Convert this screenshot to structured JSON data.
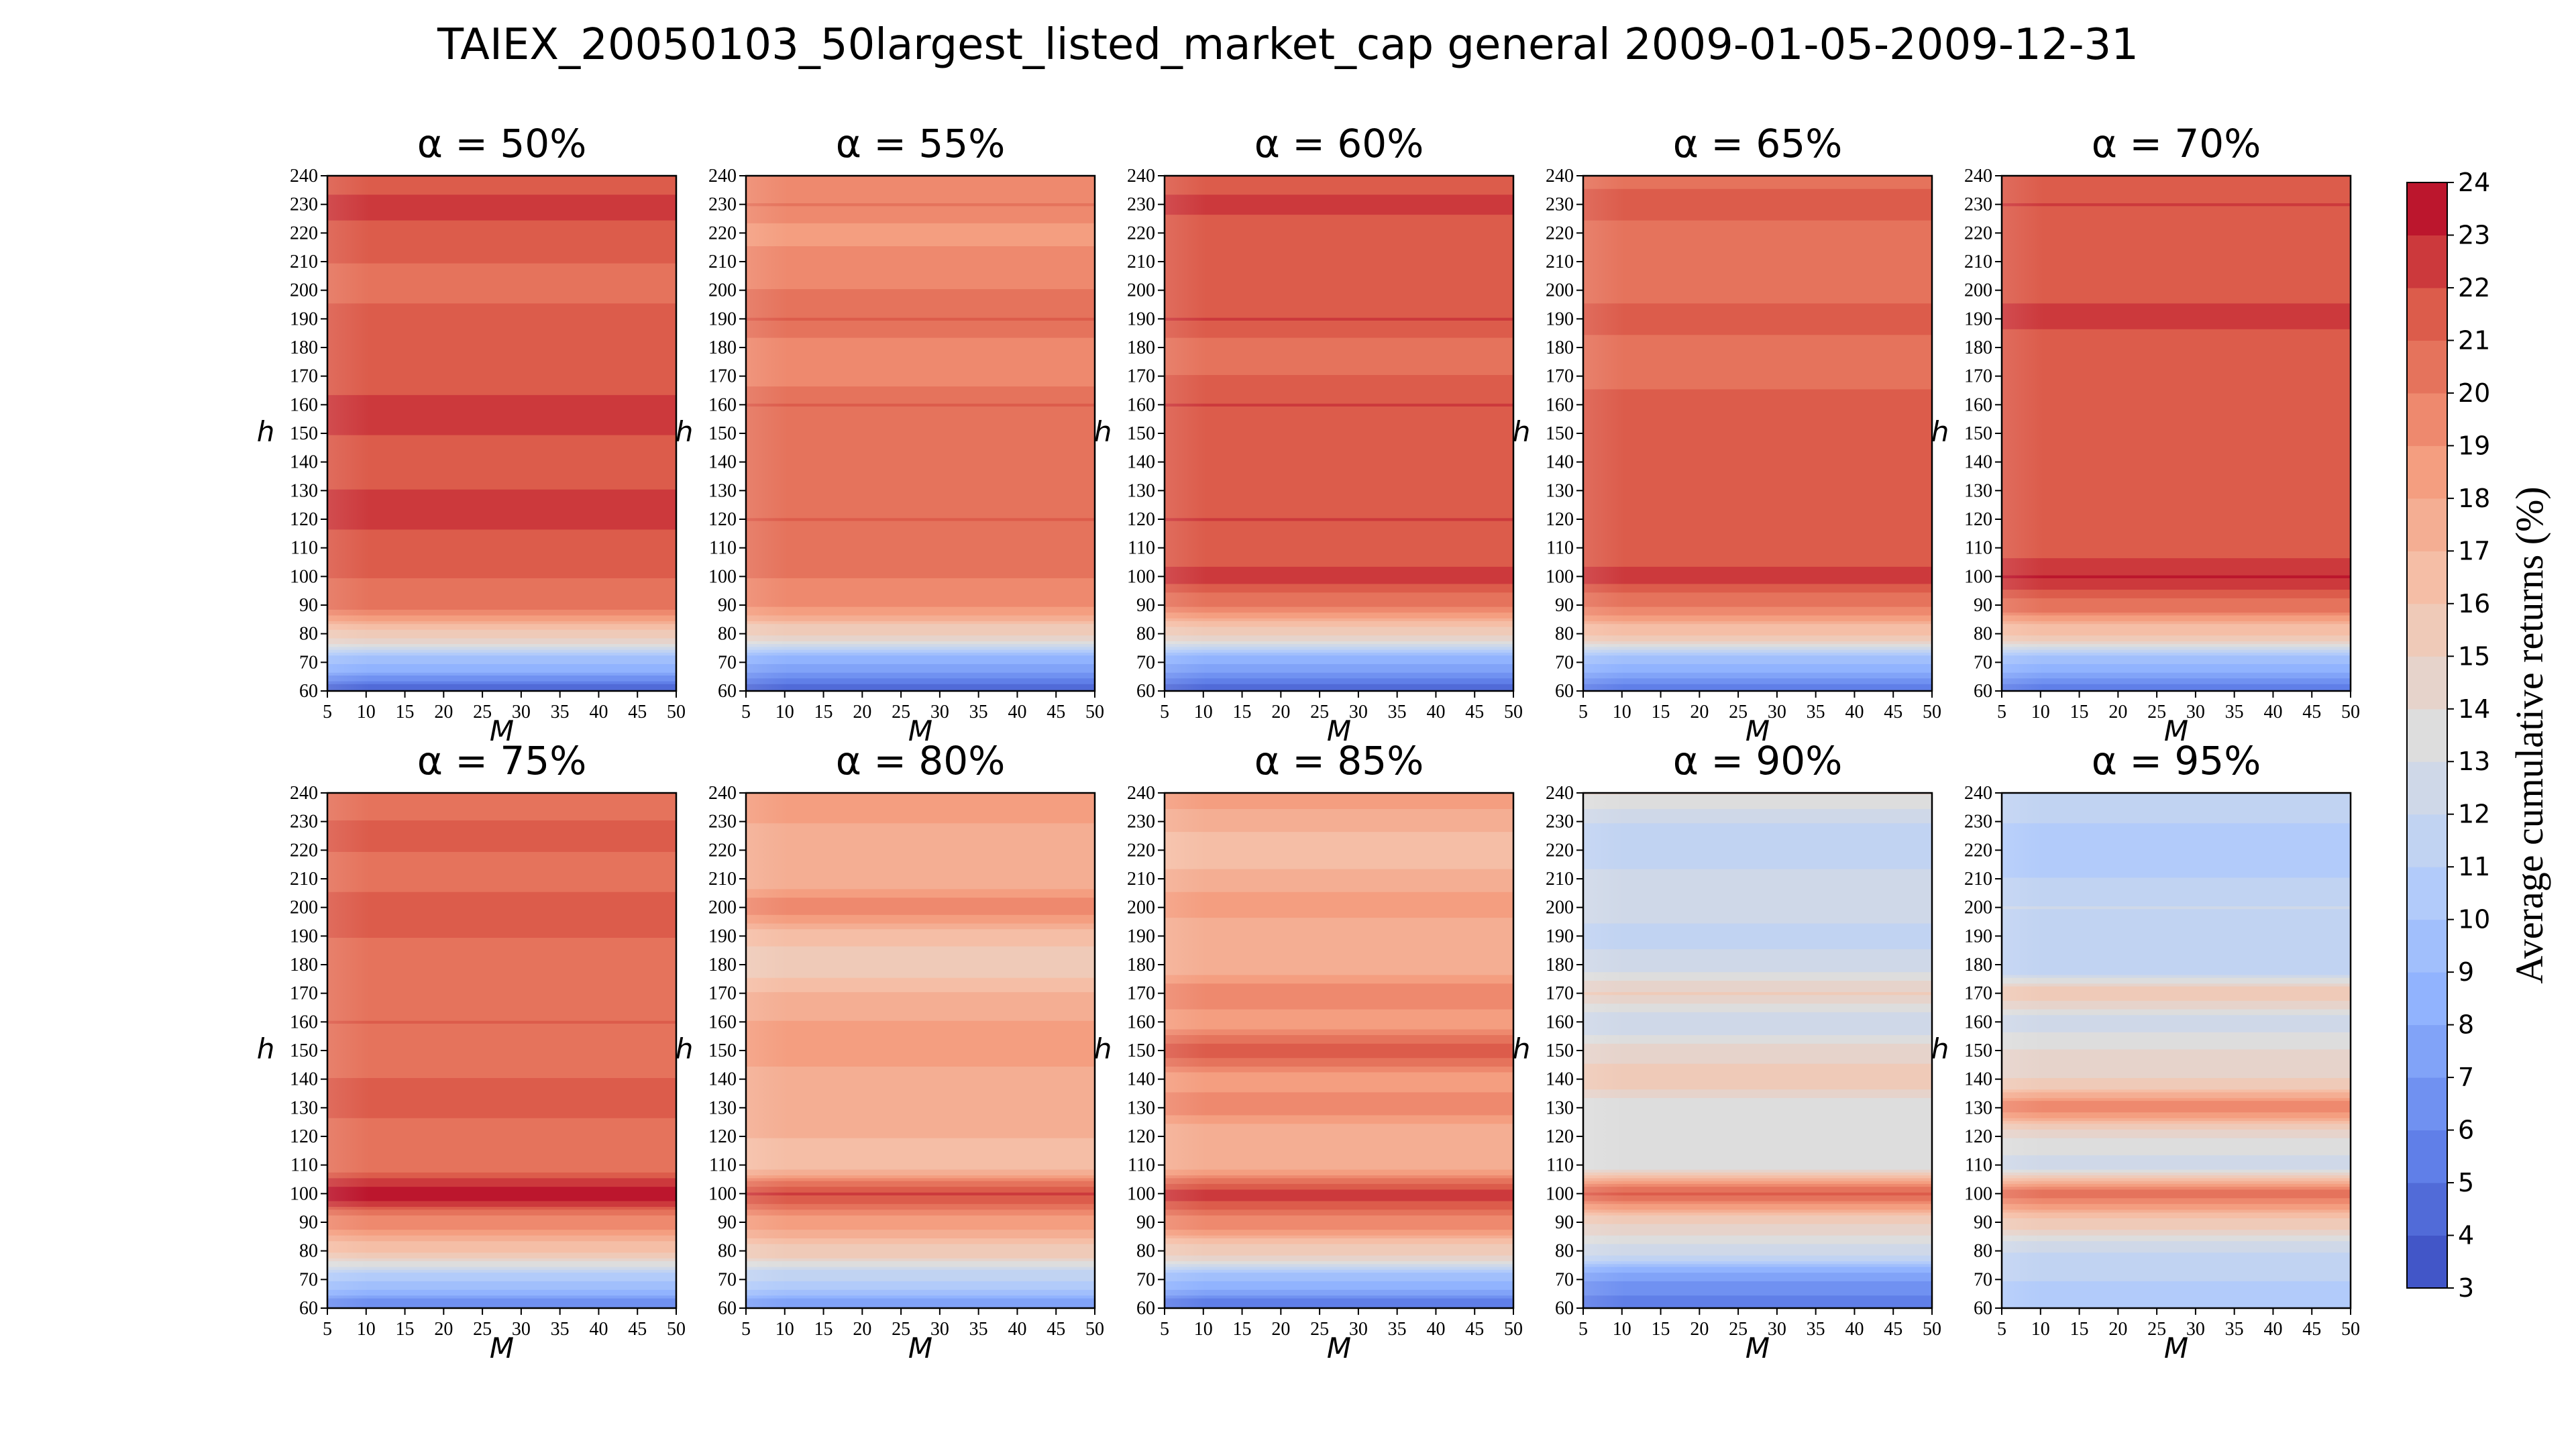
{
  "chart_data": {
    "type": "heatmap",
    "title": "TAIEX_20050103_50largest_listed_market_cap general 2009-01-05-2009-12-31",
    "xlabel": "M",
    "ylabel": "h",
    "x_ticks": [
      5,
      10,
      15,
      20,
      25,
      30,
      35,
      40,
      45,
      50
    ],
    "y_ticks": [
      60,
      70,
      80,
      90,
      100,
      110,
      120,
      130,
      140,
      150,
      160,
      170,
      180,
      190,
      200,
      210,
      220,
      230,
      240
    ],
    "xlim": [
      5,
      50
    ],
    "ylim": [
      60,
      240
    ],
    "colorbar": {
      "label": "Average cumulative returns (%)",
      "min": 3,
      "max": 24,
      "ticks": [
        3,
        4,
        5,
        6,
        7,
        8,
        9,
        10,
        11,
        12,
        13,
        14,
        15,
        16,
        17,
        18,
        19,
        20,
        21,
        22,
        23,
        24
      ],
      "colormap": "coolwarm"
    },
    "panels": [
      {
        "title": "α = 50%",
        "alpha": 50,
        "profile": [
          4.5,
          9,
          15.5,
          20.5,
          21,
          21,
          22.5,
          22,
          21,
          22,
          22.5,
          21,
          21,
          21.5,
          20.5,
          21,
          21.5,
          22.5,
          21
        ]
      },
      {
        "title": "α = 55%",
        "alpha": 55,
        "profile": [
          4.5,
          8,
          15,
          19,
          20,
          20,
          21,
          20,
          20,
          20.5,
          21,
          19.5,
          19.5,
          21,
          20,
          19.5,
          18.5,
          20,
          19.5
        ]
      },
      {
        "title": "α = 60%",
        "alpha": 60,
        "profile": [
          4.5,
          8,
          15,
          20,
          22.5,
          21,
          22,
          21.5,
          21,
          21.5,
          22,
          21,
          20.5,
          22,
          21.5,
          21,
          21,
          22.5,
          21
        ]
      },
      {
        "title": "α = 65%",
        "alpha": 65,
        "profile": [
          5.5,
          9,
          16,
          20,
          22.5,
          21,
          21,
          21.5,
          21,
          21,
          21.5,
          20.5,
          20.5,
          21.5,
          20.5,
          20.5,
          20.5,
          21.5,
          20.5
        ]
      },
      {
        "title": "α = 70%",
        "alpha": 70,
        "profile": [
          5.5,
          9,
          16,
          20.5,
          23,
          21.5,
          21,
          21.5,
          21,
          21,
          21.5,
          21,
          21,
          22.5,
          21.5,
          21,
          21.5,
          22,
          21
        ]
      },
      {
        "title": "α = 75%",
        "alpha": 75,
        "profile": [
          6,
          10,
          16,
          19.5,
          23.5,
          20.5,
          20,
          21.5,
          21,
          20.5,
          21,
          20.5,
          20,
          21,
          21.5,
          20.5,
          21,
          21,
          20.5
        ]
      },
      {
        "title": "α = 80%",
        "alpha": 80,
        "profile": [
          7,
          11,
          15.5,
          18.5,
          22,
          16.5,
          17,
          17.5,
          17.5,
          18.5,
          18,
          17,
          15,
          16.5,
          19.5,
          17.5,
          17.5,
          18,
          18
        ]
      },
      {
        "title": "α = 85%",
        "alpha": 85,
        "profile": [
          5,
          9,
          15.5,
          19.5,
          22.5,
          17.5,
          17,
          19.5,
          18.5,
          21.5,
          18.5,
          19.5,
          17.5,
          17,
          18.5,
          17.5,
          16,
          17.5,
          18.5
        ]
      },
      {
        "title": "α = 90%",
        "alpha": 90,
        "profile": [
          5,
          7,
          12.5,
          15,
          21,
          13.5,
          13,
          13.5,
          15.5,
          14.5,
          12,
          15,
          12.5,
          11.5,
          12.5,
          12.5,
          11,
          12,
          14
        ]
      },
      {
        "title": "α = 95%",
        "alpha": 95,
        "profile": [
          10,
          11,
          12,
          15.5,
          20.5,
          12.5,
          14,
          19.5,
          15,
          14,
          12.5,
          15.5,
          11,
          11.5,
          12,
          11,
          10.5,
          11,
          11
        ]
      }
    ]
  }
}
